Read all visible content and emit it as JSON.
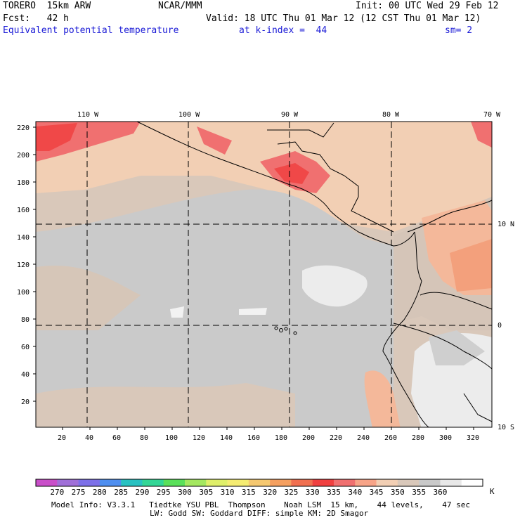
{
  "header": {
    "model": "TORERO  15km ARW",
    "org": "NCAR/MMM",
    "init": "Init: 00 UTC Wed 29 Feb 12",
    "fcst": "Fcst:   42 h",
    "valid": "Valid: 18 UTC Thu 01 Mar 12 (12 CST Thu 01 Mar 12)",
    "field": "Equivalent potential temperature",
    "level": "at k-index =  44",
    "smooth": "sm= 2"
  },
  "map": {
    "lon_labels": [
      "110 W",
      "100 W",
      "90 W",
      "80 W",
      "70 W"
    ],
    "lat_labels": [
      "10 N",
      "0",
      "10 S"
    ],
    "y_ticks": [
      "220",
      "200",
      "180",
      "160",
      "140",
      "120",
      "100",
      "80",
      "60",
      "40",
      "20"
    ],
    "x_ticks": [
      "20",
      "40",
      "60",
      "80",
      "100",
      "120",
      "140",
      "160",
      "180",
      "200",
      "220",
      "240",
      "260",
      "280",
      "300",
      "320"
    ]
  },
  "colorbar": {
    "labels": [
      "270",
      "275",
      "280",
      "285",
      "290",
      "295",
      "300",
      "305",
      "310",
      "315",
      "320",
      "325",
      "330",
      "335",
      "340",
      "345",
      "350",
      "355",
      "360"
    ],
    "unit": "K",
    "colors": [
      "#c94fc9",
      "#a070d8",
      "#7d70e8",
      "#4f8ff0",
      "#29c2c2",
      "#33d696",
      "#5ae05a",
      "#a4e860",
      "#dfef6a",
      "#f5ec72",
      "#f5c870",
      "#f5a060",
      "#f07050",
      "#f04040",
      "#f07070",
      "#f7a488",
      "#f2cfb4",
      "#d9c8ba",
      "#c9c9c9",
      "#e8e8e8",
      "#ffffff"
    ]
  },
  "footer": {
    "line1": "Model Info: V3.3.1   Tiedtke YSU PBL  Thompson    Noah LSM  15 km,    44 levels,    47 sec",
    "line2": "LW: Godd SW: Goddard DIFF: simple KM: 2D Smagor"
  }
}
